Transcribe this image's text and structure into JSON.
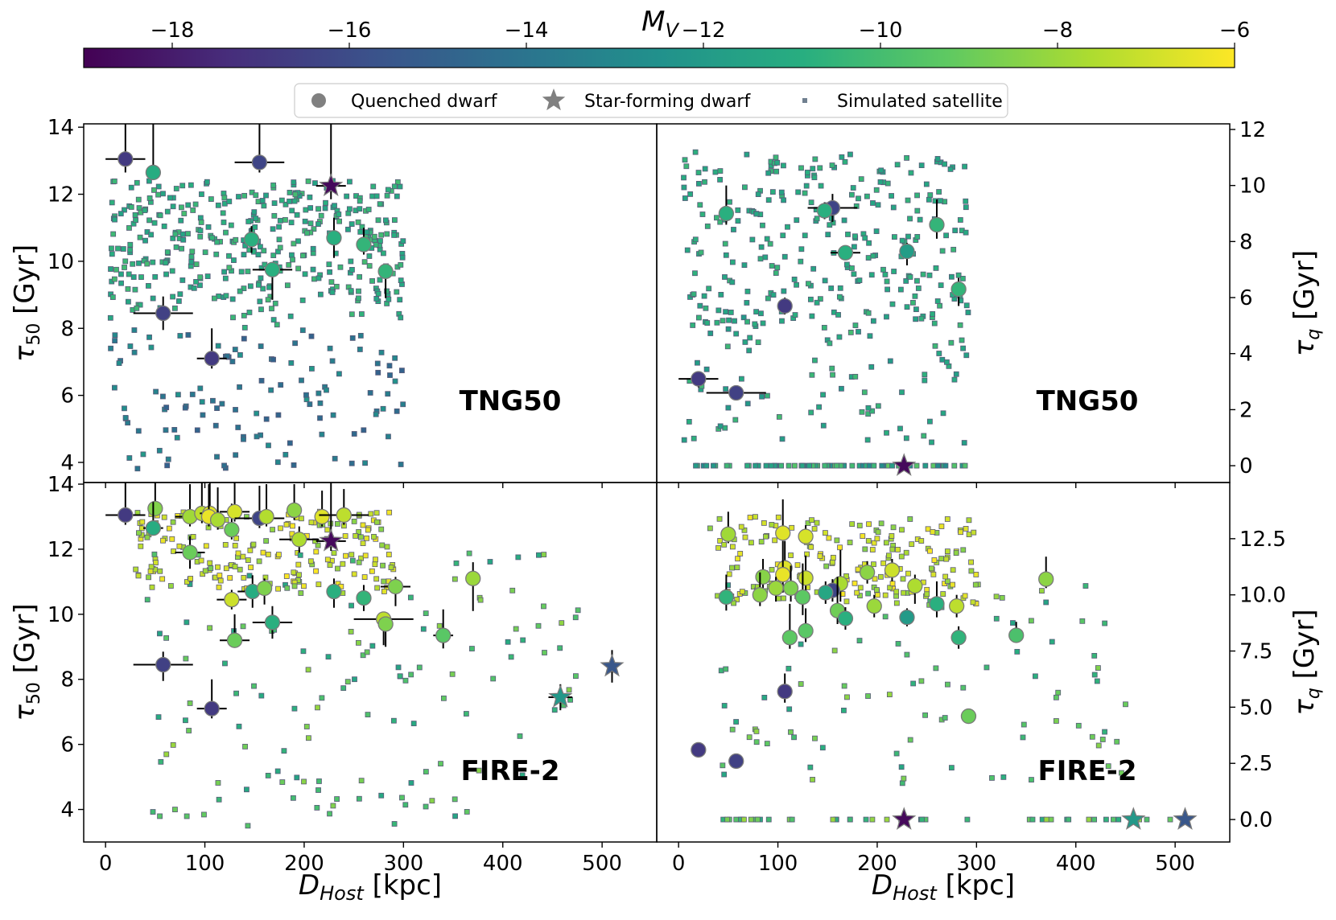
{
  "chart_data": {
    "type": "scatter",
    "colorbar": {
      "label": "M",
      "label_subscript": "V",
      "range": [
        -19,
        -6
      ],
      "ticks": [
        -18,
        -16,
        -14,
        -12,
        -10,
        -8,
        -6
      ],
      "tick_labels": [
        "−18",
        "−16",
        "−14",
        "−12",
        "−10",
        "−8",
        "−6"
      ],
      "colormap": [
        "#440154",
        "#472d7b",
        "#3b528b",
        "#2c728e",
        "#21918c",
        "#28ae80",
        "#5ec962",
        "#addc30",
        "#fde725"
      ]
    },
    "legend": {
      "placement": "top-center",
      "entries": [
        {
          "label": "Quenched dwarf",
          "marker": "circle"
        },
        {
          "label": "Star-forming dwarf",
          "marker": "star"
        },
        {
          "label": "Simulated satellite",
          "marker": "square"
        }
      ]
    },
    "shared_x": {
      "label": "D",
      "label_subscript": "Host",
      "unit": "[kpc]",
      "range": [
        -22,
        555
      ],
      "ticks": [
        0,
        100,
        200,
        300,
        400,
        500
      ]
    },
    "panels": [
      {
        "id": "tng50-tau50",
        "label": "TNG50",
        "y_side": "left",
        "y_label": "τ",
        "y_label_subscript": "50",
        "y_unit": "[Gyr]",
        "y_range": [
          3.4,
          14.1
        ],
        "y_ticks": [
          4,
          6,
          8,
          10,
          12,
          14
        ],
        "quenched": [
          {
            "x": 20,
            "y": 13.05,
            "mv": -16.8,
            "xerr": 20,
            "yerr_lo": 0.4,
            "yerr_hi": 1.5
          },
          {
            "x": 48,
            "y": 12.65,
            "mv": -11.0,
            "xerr": 0,
            "yerr_lo": 0.2,
            "yerr_hi": 1.5
          },
          {
            "x": 155,
            "y": 12.95,
            "mv": -16.3,
            "xerr": 25,
            "yerr_lo": 0.3,
            "yerr_hi": 1.5
          },
          {
            "x": 147,
            "y": 10.65,
            "mv": -10.8,
            "xerr": 0,
            "yerr_lo": 0.4,
            "yerr_hi": 0.4
          },
          {
            "x": 230,
            "y": 10.7,
            "mv": -10.8,
            "xerr": 0,
            "yerr_lo": 0.6,
            "yerr_hi": 0.6
          },
          {
            "x": 260,
            "y": 10.5,
            "mv": -10.5,
            "xerr": 0,
            "yerr_lo": 0.3,
            "yerr_hi": 0.5
          },
          {
            "x": 168,
            "y": 9.75,
            "mv": -10.8,
            "xerr": 20,
            "yerr_lo": 0.9,
            "yerr_hi": 0.0
          },
          {
            "x": 282,
            "y": 9.7,
            "mv": -10.5,
            "xerr": 0,
            "yerr_lo": 0.8,
            "yerr_hi": 0.2
          },
          {
            "x": 58,
            "y": 8.45,
            "mv": -16.5,
            "xerr": 30,
            "yerr_lo": 0.5,
            "yerr_hi": 0.5
          },
          {
            "x": 107,
            "y": 7.1,
            "mv": -16.8,
            "xerr": 15,
            "yerr_lo": 0.3,
            "yerr_hi": 0.9
          }
        ],
        "starforming": [
          {
            "x": 227,
            "y": 12.25,
            "mv": -18.7,
            "xerr": 15,
            "yerr_lo": 0.4,
            "yerr_hi": 2.0
          }
        ],
        "sim": {
          "n": 520,
          "seed": 11,
          "x_max": 300,
          "style": "tng"
        }
      },
      {
        "id": "tng50-tauq",
        "label": "TNG50",
        "y_side": "right",
        "y_label": "τ",
        "y_label_subscript": "q",
        "y_unit": "[Gyr]",
        "y_range": [
          -0.6,
          12.2
        ],
        "y_ticks": [
          0,
          2,
          4,
          6,
          8,
          10,
          12
        ],
        "quenched": [
          {
            "x": 48,
            "y": 9.0,
            "mv": -10.8,
            "xerr": 0,
            "yerr_lo": 0.4,
            "yerr_hi": 1.0
          },
          {
            "x": 155,
            "y": 9.2,
            "mv": -16.3,
            "xerr": 25,
            "yerr_lo": 0.5,
            "yerr_hi": 0.5
          },
          {
            "x": 147,
            "y": 9.1,
            "mv": -10.8,
            "xerr": 0,
            "yerr_lo": 0.3,
            "yerr_hi": 0.3
          },
          {
            "x": 260,
            "y": 8.6,
            "mv": -10.5,
            "xerr": 0,
            "yerr_lo": 0.5,
            "yerr_hi": 0.9
          },
          {
            "x": 168,
            "y": 7.6,
            "mv": -10.8,
            "xerr": 15,
            "yerr_lo": 0.2,
            "yerr_hi": 0.2
          },
          {
            "x": 230,
            "y": 7.65,
            "mv": -11.8,
            "xerr": 0,
            "yerr_lo": 0.5,
            "yerr_hi": 0.3
          },
          {
            "x": 282,
            "y": 6.3,
            "mv": -10.5,
            "xerr": 0,
            "yerr_lo": 0.6,
            "yerr_hi": 0.4
          },
          {
            "x": 107,
            "y": 5.7,
            "mv": -16.8,
            "xerr": 0,
            "yerr_lo": 0.3,
            "yerr_hi": 0.3
          },
          {
            "x": 20,
            "y": 3.1,
            "mv": -16.8,
            "xerr": 20,
            "yerr_lo": 0.3,
            "yerr_hi": 0.0
          },
          {
            "x": 58,
            "y": 2.6,
            "mv": -16.5,
            "xerr": 30,
            "yerr_lo": 0.0,
            "yerr_hi": 0.0
          }
        ],
        "starforming": [
          {
            "x": 227,
            "y": 0.0,
            "mv": -18.7,
            "xerr": 0,
            "yerr_lo": 0,
            "yerr_hi": 0
          }
        ],
        "sim": {
          "n": 430,
          "seed": 23,
          "x_max": 292,
          "style": "tngq"
        }
      },
      {
        "id": "fire2-tau50",
        "label": "FIRE-2",
        "y_side": "left",
        "y_label": "τ",
        "y_label_subscript": "50",
        "y_unit": "[Gyr]",
        "y_range": [
          3.0,
          14.05
        ],
        "y_ticks": [
          4,
          6,
          8,
          10,
          12,
          14
        ],
        "quenched": [
          {
            "x": 20,
            "y": 13.05,
            "mv": -16.8,
            "xerr": 20,
            "yerr_lo": 0.3,
            "yerr_hi": 1.0
          },
          {
            "x": 50,
            "y": 13.25,
            "mv": -8.5,
            "xerr": 0,
            "yerr_lo": 0.2,
            "yerr_hi": 0.8
          },
          {
            "x": 48,
            "y": 12.65,
            "mv": -11.0,
            "xerr": 10,
            "yerr_lo": 0.2,
            "yerr_hi": 0.8
          },
          {
            "x": 85,
            "y": 13.0,
            "mv": -7.9,
            "xerr": 15,
            "yerr_lo": 0.3,
            "yerr_hi": 1.0
          },
          {
            "x": 97,
            "y": 13.1,
            "mv": -7.3,
            "xerr": 0,
            "yerr_lo": 0.3,
            "yerr_hi": 1.0
          },
          {
            "x": 105,
            "y": 13.1,
            "mv": -6.6,
            "xerr": 10,
            "yerr_lo": 0.3,
            "yerr_hi": 1.0
          },
          {
            "x": 104,
            "y": 13.0,
            "mv": -6.4,
            "xerr": 0,
            "yerr_lo": 0.3,
            "yerr_hi": 1.0
          },
          {
            "x": 113,
            "y": 12.9,
            "mv": -7.7,
            "xerr": 0,
            "yerr_lo": 0.3,
            "yerr_hi": 1.0
          },
          {
            "x": 127,
            "y": 12.6,
            "mv": -9.0,
            "xerr": 0,
            "yerr_lo": 0.3,
            "yerr_hi": 0.8
          },
          {
            "x": 130,
            "y": 13.15,
            "mv": -6.8,
            "xerr": 15,
            "yerr_lo": 0.3,
            "yerr_hi": 1.0
          },
          {
            "x": 155,
            "y": 12.95,
            "mv": -16.3,
            "xerr": 25,
            "yerr_lo": 0.3,
            "yerr_hi": 1.0
          },
          {
            "x": 162,
            "y": 13.0,
            "mv": -7.5,
            "xerr": 0,
            "yerr_lo": 0.3,
            "yerr_hi": 1.0
          },
          {
            "x": 190,
            "y": 13.2,
            "mv": -8.3,
            "xerr": 0,
            "yerr_lo": 0.3,
            "yerr_hi": 0.8
          },
          {
            "x": 218,
            "y": 13.0,
            "mv": -6.6,
            "xerr": 0,
            "yerr_lo": 0.3,
            "yerr_hi": 0.8
          },
          {
            "x": 240,
            "y": 13.05,
            "mv": -7.3,
            "xerr": 25,
            "yerr_lo": 0.3,
            "yerr_hi": 0.8
          },
          {
            "x": 85,
            "y": 11.9,
            "mv": -9.0,
            "xerr": 15,
            "yerr_lo": 0.5,
            "yerr_hi": 0.5
          },
          {
            "x": 195,
            "y": 12.3,
            "mv": -7.6,
            "xerr": 20,
            "yerr_lo": 0.4,
            "yerr_hi": 0.4
          },
          {
            "x": 370,
            "y": 11.1,
            "mv": -8.0,
            "xerr": 0,
            "yerr_lo": 1.0,
            "yerr_hi": 0.5
          },
          {
            "x": 148,
            "y": 10.7,
            "mv": -11.0,
            "xerr": 15,
            "yerr_lo": 0.5,
            "yerr_hi": 0.5
          },
          {
            "x": 160,
            "y": 10.8,
            "mv": -8.6,
            "xerr": 0,
            "yerr_lo": 0.5,
            "yerr_hi": 0.3
          },
          {
            "x": 292,
            "y": 10.85,
            "mv": -8.6,
            "xerr": 15,
            "yerr_lo": 0.6,
            "yerr_hi": 0.3
          },
          {
            "x": 230,
            "y": 10.7,
            "mv": -10.8,
            "xerr": 0,
            "yerr_lo": 0.5,
            "yerr_hi": 0.4
          },
          {
            "x": 260,
            "y": 10.5,
            "mv": -10.5,
            "xerr": 0,
            "yerr_lo": 0.4,
            "yerr_hi": 0.4
          },
          {
            "x": 127,
            "y": 10.45,
            "mv": -7.0,
            "xerr": 15,
            "yerr_lo": 0.3,
            "yerr_hi": 0.3
          },
          {
            "x": 168,
            "y": 9.75,
            "mv": -10.8,
            "xerr": 20,
            "yerr_lo": 0.5,
            "yerr_hi": 0.5
          },
          {
            "x": 280,
            "y": 9.85,
            "mv": -7.3,
            "xerr": 30,
            "yerr_lo": 0.8,
            "yerr_hi": 0.2
          },
          {
            "x": 282,
            "y": 9.7,
            "mv": -8.6,
            "xerr": 0,
            "yerr_lo": 0.7,
            "yerr_hi": 0.2
          },
          {
            "x": 340,
            "y": 9.35,
            "mv": -9.4,
            "xerr": 10,
            "yerr_lo": 0.4,
            "yerr_hi": 0.8
          },
          {
            "x": 130,
            "y": 9.2,
            "mv": -9.0,
            "xerr": 15,
            "yerr_lo": 0.2,
            "yerr_hi": 0.8
          },
          {
            "x": 58,
            "y": 8.45,
            "mv": -16.5,
            "xerr": 30,
            "yerr_lo": 0.5,
            "yerr_hi": 0.4
          },
          {
            "x": 107,
            "y": 7.1,
            "mv": -16.8,
            "xerr": 15,
            "yerr_lo": 0.3,
            "yerr_hi": 0.9
          }
        ],
        "starforming": [
          {
            "x": 227,
            "y": 12.25,
            "mv": -18.7,
            "xerr": 15,
            "yerr_lo": 0.3,
            "yerr_hi": 2.0
          },
          {
            "x": 458,
            "y": 7.45,
            "mv": -12.1,
            "xerr": 12,
            "yerr_lo": 0.4,
            "yerr_hi": 0.4
          },
          {
            "x": 510,
            "y": 8.4,
            "mv": -15.5,
            "xerr": 0,
            "yerr_lo": 0.5,
            "yerr_hi": 0.5
          }
        ],
        "sim": {
          "n": 330,
          "seed": 37,
          "x_max": 480,
          "style": "fire"
        }
      },
      {
        "id": "fire2-tauq",
        "label": "FIRE-2",
        "y_side": "right",
        "y_label": "τ",
        "y_label_subscript": "q",
        "y_unit": "[Gyr]",
        "y_range": [
          -1.0,
          15.0
        ],
        "y_ticks": [
          0.0,
          2.5,
          5.0,
          7.5,
          10.0,
          12.5
        ],
        "y_tick_labels": [
          "0.0",
          "2.5",
          "5.0",
          "7.5",
          "10.0",
          "12.5"
        ],
        "quenched": [
          {
            "x": 50,
            "y": 12.7,
            "mv": -7.9,
            "xerr": 0,
            "yerr_lo": 0.4,
            "yerr_hi": 1.0
          },
          {
            "x": 105,
            "y": 12.75,
            "mv": -6.6,
            "xerr": 0,
            "yerr_lo": 0.3,
            "yerr_hi": 1.5
          },
          {
            "x": 128,
            "y": 12.6,
            "mv": -6.8,
            "xerr": 0,
            "yerr_lo": 0.3,
            "yerr_hi": 0.5
          },
          {
            "x": 107,
            "y": 11.2,
            "mv": -6.6,
            "xerr": 0,
            "yerr_lo": 0.5,
            "yerr_hi": 1.2
          },
          {
            "x": 105,
            "y": 10.9,
            "mv": -6.4,
            "xerr": 0,
            "yerr_lo": 0.8,
            "yerr_hi": 1.5
          },
          {
            "x": 215,
            "y": 11.1,
            "mv": -7.0,
            "xerr": 0,
            "yerr_lo": 0.5,
            "yerr_hi": 0.5
          },
          {
            "x": 85,
            "y": 10.8,
            "mv": -8.4,
            "xerr": 0,
            "yerr_lo": 0.5,
            "yerr_hi": 0.8
          },
          {
            "x": 128,
            "y": 10.75,
            "mv": -7.0,
            "xerr": 0,
            "yerr_lo": 0.6,
            "yerr_hi": 1.0
          },
          {
            "x": 163,
            "y": 10.5,
            "mv": -7.7,
            "xerr": 0,
            "yerr_lo": 0.8,
            "yerr_hi": 1.5
          },
          {
            "x": 190,
            "y": 11.0,
            "mv": -8.3,
            "xerr": 0,
            "yerr_lo": 0.5,
            "yerr_hi": 0.5
          },
          {
            "x": 238,
            "y": 10.4,
            "mv": -7.6,
            "xerr": 0,
            "yerr_lo": 0.8,
            "yerr_hi": 0.5
          },
          {
            "x": 370,
            "y": 10.7,
            "mv": -8.3,
            "xerr": 0,
            "yerr_lo": 0.4,
            "yerr_hi": 1.0
          },
          {
            "x": 98,
            "y": 10.3,
            "mv": -8.0,
            "xerr": 0,
            "yerr_lo": 0.6,
            "yerr_hi": 0.5
          },
          {
            "x": 113,
            "y": 10.3,
            "mv": -8.6,
            "xerr": 0,
            "yerr_lo": 0.6,
            "yerr_hi": 1.0
          },
          {
            "x": 82,
            "y": 10.0,
            "mv": -8.3,
            "xerr": 0,
            "yerr_lo": 0.5,
            "yerr_hi": 1.0
          },
          {
            "x": 48,
            "y": 9.9,
            "mv": -10.6,
            "xerr": 0,
            "yerr_lo": 0.6,
            "yerr_hi": 1.0
          },
          {
            "x": 125,
            "y": 9.9,
            "mv": -9.3,
            "xerr": 0,
            "yerr_lo": 0.8,
            "yerr_hi": 1.5
          },
          {
            "x": 155,
            "y": 10.2,
            "mv": -16.3,
            "xerr": 0,
            "yerr_lo": 0.5,
            "yerr_hi": 0.5
          },
          {
            "x": 148,
            "y": 10.1,
            "mv": -11.3,
            "xerr": 0,
            "yerr_lo": 0.5,
            "yerr_hi": 0.5
          },
          {
            "x": 160,
            "y": 9.3,
            "mv": -8.9,
            "xerr": 0,
            "yerr_lo": 0.6,
            "yerr_hi": 1.5
          },
          {
            "x": 197,
            "y": 9.5,
            "mv": -8.0,
            "xerr": 0,
            "yerr_lo": 0.5,
            "yerr_hi": 0.5
          },
          {
            "x": 260,
            "y": 9.6,
            "mv": -10.8,
            "xerr": 0,
            "yerr_lo": 0.6,
            "yerr_hi": 1.0
          },
          {
            "x": 280,
            "y": 9.5,
            "mv": -7.3,
            "xerr": 0,
            "yerr_lo": 0.5,
            "yerr_hi": 0.5
          },
          {
            "x": 168,
            "y": 8.95,
            "mv": -10.8,
            "xerr": 0,
            "yerr_lo": 0.5,
            "yerr_hi": 0.5
          },
          {
            "x": 230,
            "y": 9.0,
            "mv": -12.0,
            "xerr": 0,
            "yerr_lo": 0.4,
            "yerr_hi": 0.4
          },
          {
            "x": 112,
            "y": 8.1,
            "mv": -9.3,
            "xerr": 0,
            "yerr_lo": 0.5,
            "yerr_hi": 1.5
          },
          {
            "x": 128,
            "y": 8.4,
            "mv": -9.4,
            "xerr": 0,
            "yerr_lo": 0.5,
            "yerr_hi": 1.0
          },
          {
            "x": 282,
            "y": 8.1,
            "mv": -10.6,
            "xerr": 0,
            "yerr_lo": 0.5,
            "yerr_hi": 0.5
          },
          {
            "x": 340,
            "y": 8.2,
            "mv": -9.8,
            "xerr": 0,
            "yerr_lo": 0.3,
            "yerr_hi": 0.6
          },
          {
            "x": 107,
            "y": 5.7,
            "mv": -16.8,
            "xerr": 0,
            "yerr_lo": 0.5,
            "yerr_hi": 0.8
          },
          {
            "x": 292,
            "y": 4.6,
            "mv": -9.0,
            "xerr": 0,
            "yerr_lo": 0.3,
            "yerr_hi": 0.3
          },
          {
            "x": 20,
            "y": 3.1,
            "mv": -16.8,
            "xerr": 0,
            "yerr_lo": 0,
            "yerr_hi": 0
          },
          {
            "x": 58,
            "y": 2.6,
            "mv": -16.5,
            "xerr": 0,
            "yerr_lo": 0,
            "yerr_hi": 0
          }
        ],
        "starforming": [
          {
            "x": 227,
            "y": 0.0,
            "mv": -18.7,
            "xerr": 0,
            "yerr_lo": 0,
            "yerr_hi": 0
          },
          {
            "x": 458,
            "y": 0.0,
            "mv": -12.1,
            "xerr": 0,
            "yerr_lo": 0,
            "yerr_hi": 0
          },
          {
            "x": 510,
            "y": 0.0,
            "mv": -15.5,
            "xerr": 0,
            "yerr_lo": 0,
            "yerr_hi": 0
          }
        ],
        "sim": {
          "n": 330,
          "seed": 53,
          "x_max": 470,
          "style": "fireq"
        }
      }
    ]
  }
}
